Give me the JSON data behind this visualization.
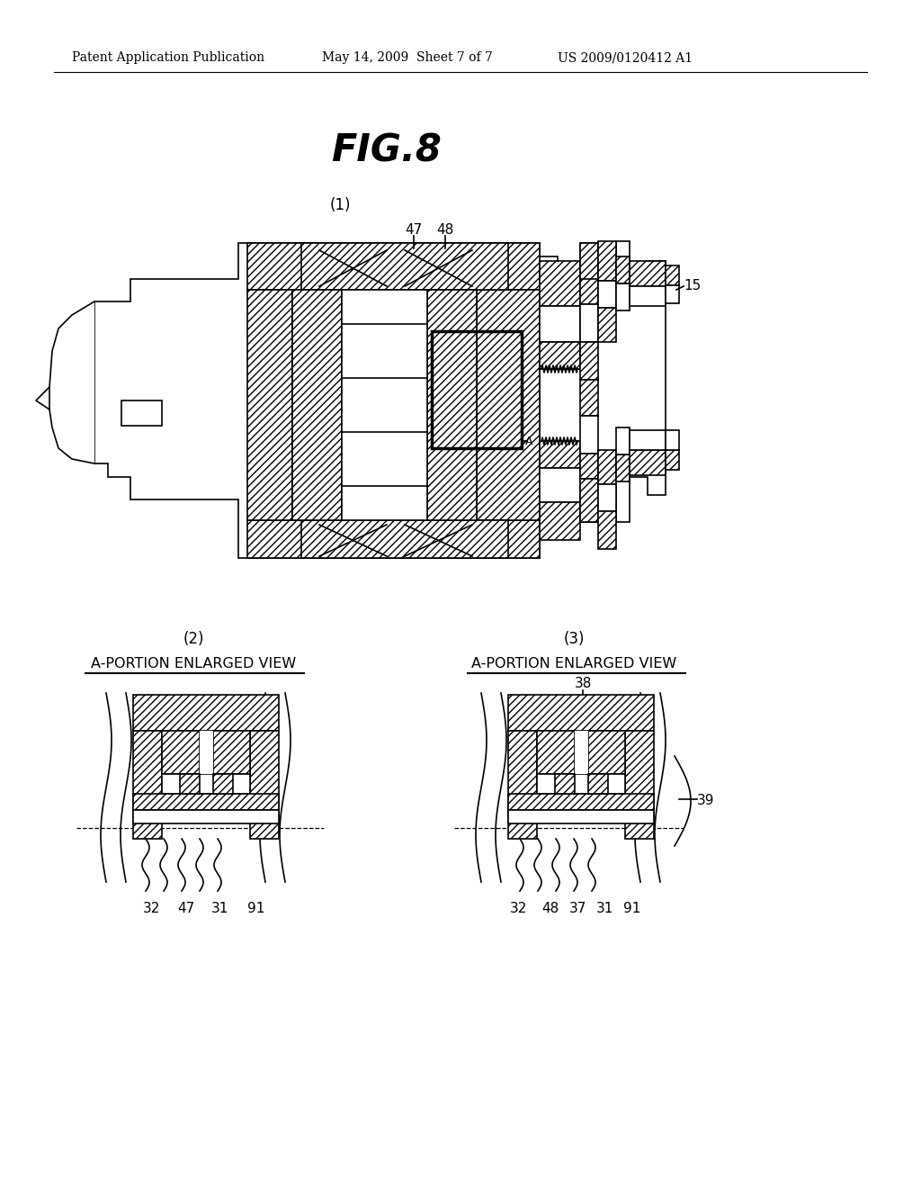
{
  "bg_color": "#ffffff",
  "title_text": "FIG.8",
  "header_left": "Patent Application Publication",
  "header_mid": "May 14, 2009  Sheet 7 of 7",
  "header_right": "US 2009/0120412 A1",
  "label_1": "(1)",
  "label_2": "(2)",
  "label_3": "(3)",
  "sub2_title": "A-PORTION ENLARGED VIEW",
  "sub3_title": "A-PORTION ENLARGED VIEW",
  "sub2_labels": [
    "32",
    "47",
    "31",
    "91"
  ],
  "sub3_labels": [
    "32",
    "48",
    "37",
    "31",
    "91"
  ],
  "label_47": "47",
  "label_48": "48",
  "label_15": "15",
  "label_A": "A",
  "label_38": "38",
  "label_39": "39",
  "line_color": "#000000",
  "line_width": 1.2
}
